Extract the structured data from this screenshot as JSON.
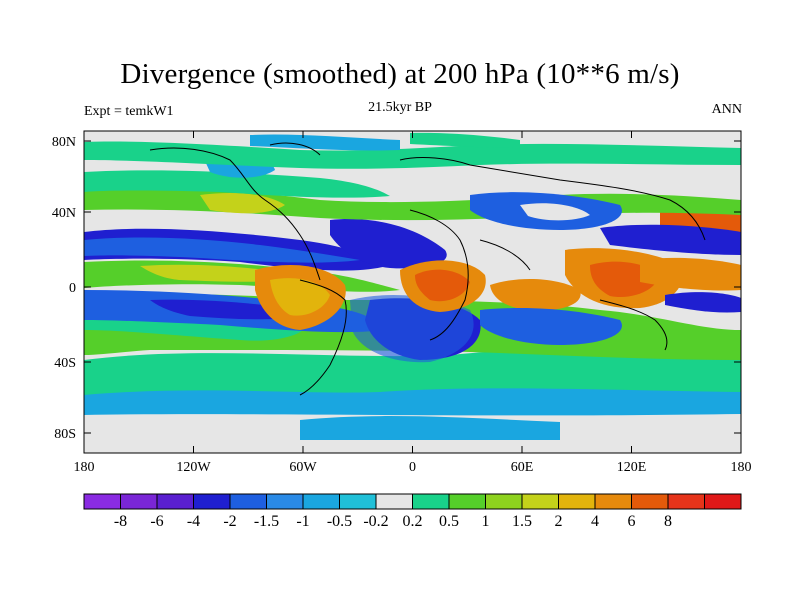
{
  "title": "Divergence (smoothed) at 200 hPa (10**6 m/s)",
  "left_label": "Expt = temkW1",
  "center_label": "21.5kyr BP",
  "right_label": "ANN",
  "lat_ticks": [
    "80N",
    "40N",
    "0",
    "40S",
    "80S"
  ],
  "lon_ticks": [
    "180",
    "120W",
    "60W",
    "0",
    "60E",
    "120E",
    "180"
  ],
  "colorbar": {
    "colors": [
      "#8a2be2",
      "#7a26d6",
      "#5a1fd0",
      "#1f1fd0",
      "#1e5fe0",
      "#2a8ae6",
      "#1aa6e0",
      "#20c0d8",
      "#e6e6e6",
      "#19d28a",
      "#55cf2a",
      "#8ed21e",
      "#c4d21a",
      "#e2b40c",
      "#e68a0c",
      "#e45a0a",
      "#e6341a",
      "#e01818"
    ],
    "labels": [
      "-8",
      "-6",
      "-4",
      "-2",
      "-1.5",
      "-1",
      "-0.5",
      "-0.2",
      "0.2",
      "0.5",
      "1",
      "1.5",
      "2",
      "4",
      "6",
      "8"
    ]
  }
}
